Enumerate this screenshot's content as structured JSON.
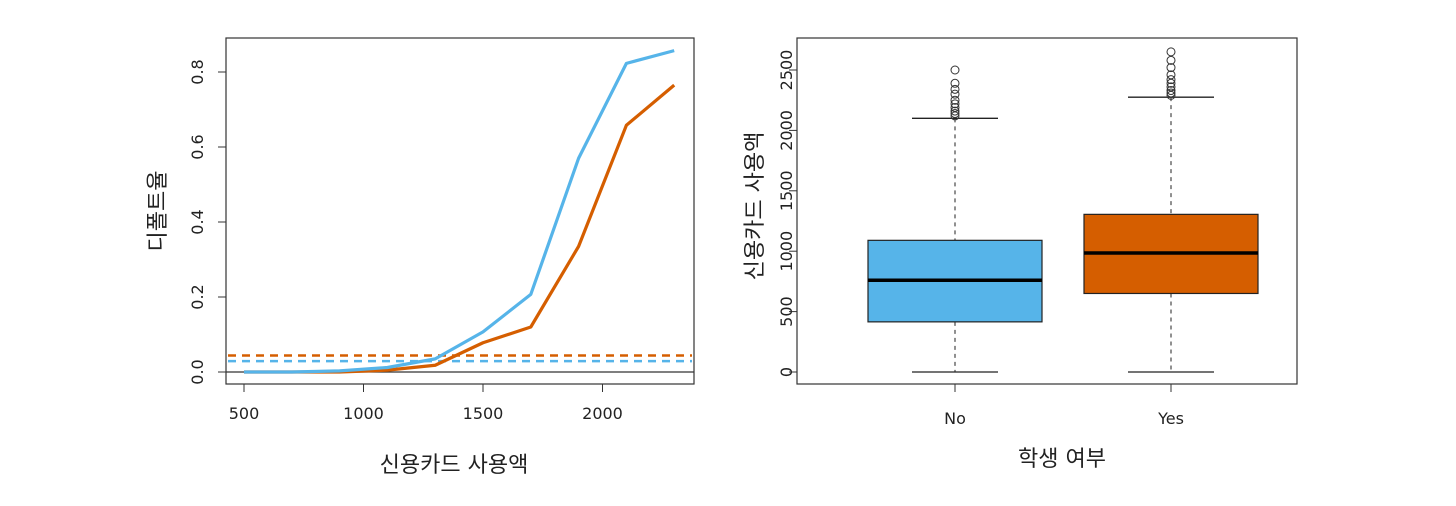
{
  "chart_data": [
    {
      "type": "line",
      "xlabel": "신용카드 사용액",
      "ylabel": "디폴트율",
      "xlim": [
        430,
        2360
      ],
      "ylim": [
        -0.03,
        0.89
      ],
      "xticks": [
        500,
        1000,
        1500,
        2000
      ],
      "xtick_labels": [
        "500",
        "1000",
        "1500",
        "2000"
      ],
      "yticks": [
        0.0,
        0.2,
        0.4,
        0.6,
        0.8
      ],
      "ytick_labels": [
        "0.0",
        "0.2",
        "0.4",
        "0.6",
        "0.8"
      ],
      "grid": false,
      "x": [
        500,
        700,
        900,
        1100,
        1300,
        1500,
        1700,
        1900,
        2100,
        2300
      ],
      "series": [
        {
          "color": "#56B4E9",
          "values": [
            0,
            0,
            0.003,
            0.012,
            0.035,
            0.107,
            0.207,
            0.57,
            0.823,
            0.857
          ],
          "overall_rate": 0.029
        },
        {
          "color": "#D55E00",
          "values": [
            0,
            0,
            0,
            0.005,
            0.018,
            0.078,
            0.12,
            0.335,
            0.658,
            0.765
          ],
          "overall_rate": 0.044
        }
      ],
      "hline": 0
    },
    {
      "type": "box",
      "xlabel": "학생 여부",
      "ylabel": "신용카드 사용액",
      "ylim": [
        -100,
        2760
      ],
      "yticks": [
        0,
        500,
        1000,
        1500,
        2000,
        2500
      ],
      "ytick_labels": [
        "0",
        "500",
        "1000",
        "1500",
        "2000",
        "2500"
      ],
      "categories": [
        "No",
        "Yes"
      ],
      "boxes": [
        {
          "color": "#56B4E9",
          "whisker_low": 0,
          "q1": 415,
          "median": 760,
          "q3": 1090,
          "whisker_high": 2100,
          "outliers": [
            2120,
            2140,
            2160,
            2190,
            2220,
            2250,
            2300,
            2340,
            2390,
            2500
          ]
        },
        {
          "color": "#D55E00",
          "whisker_low": 0,
          "q1": 650,
          "median": 985,
          "q3": 1305,
          "whisker_high": 2275,
          "outliers": [
            2290,
            2310,
            2330,
            2360,
            2390,
            2420,
            2460,
            2520,
            2580,
            2650
          ]
        }
      ]
    }
  ]
}
